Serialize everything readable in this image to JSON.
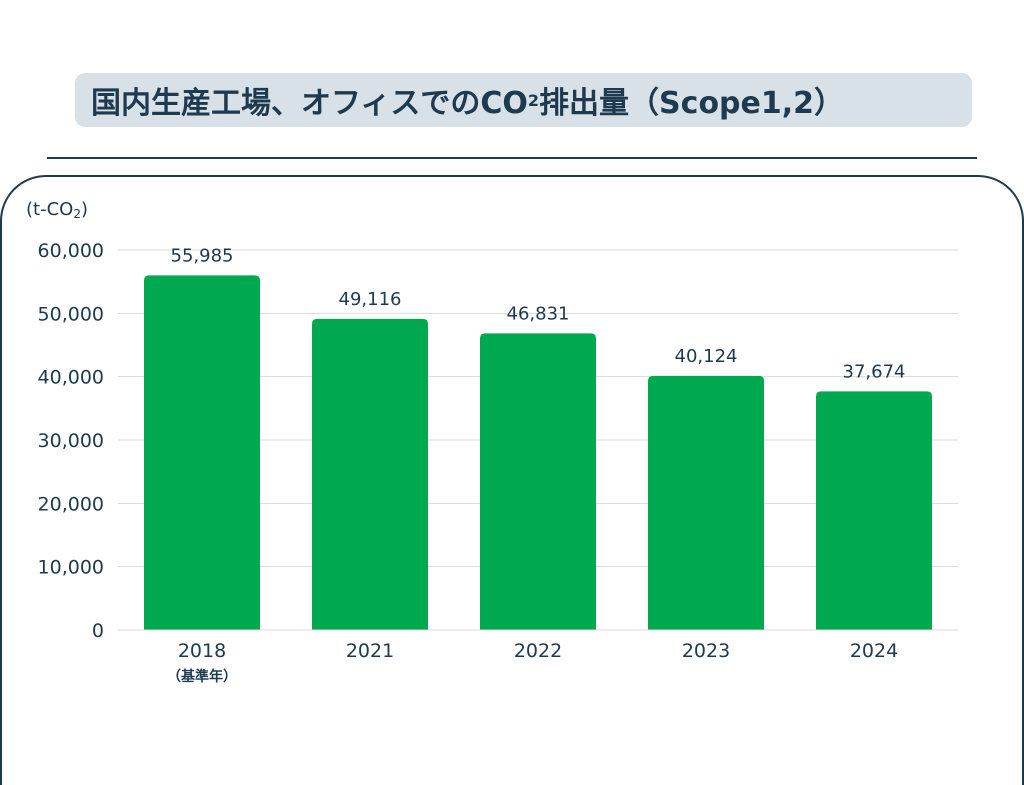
{
  "header": {
    "title_main": "国内生産工場、オフィスでのCO",
    "title_sub": "2",
    "title_end": "排出量（Scope1,2）"
  },
  "unit": {
    "main": "(t-CO",
    "sub": "2",
    "end": ")"
  },
  "chart_data": {
    "type": "bar",
    "categories": [
      "2018",
      "2021",
      "2022",
      "2023",
      "2024"
    ],
    "category_notes": [
      "（基準年）",
      "",
      "",
      "",
      ""
    ],
    "values": [
      55985,
      49116,
      46831,
      40124,
      37674
    ],
    "value_labels": [
      "55,985",
      "49,116",
      "46,831",
      "40,124",
      "37,674"
    ],
    "yticks": [
      0,
      10000,
      20000,
      30000,
      40000,
      50000,
      60000
    ],
    "ytick_labels": [
      "0",
      "10,000",
      "20,000",
      "30,000",
      "40,000",
      "50,000",
      "60,000"
    ],
    "ylim": [
      0,
      60000
    ],
    "grid": true,
    "colors": {
      "bar": "#00a94f",
      "grid": "#d9d9d9",
      "text": "#1e3a4f"
    }
  }
}
